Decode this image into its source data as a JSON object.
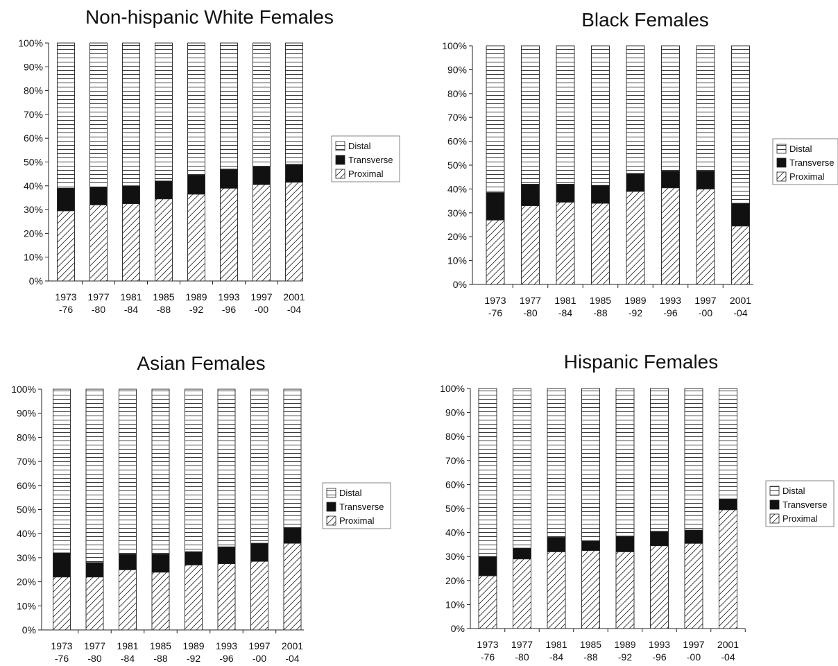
{
  "legend": [
    {
      "name": "Distal",
      "pattern": "horizontal-lines"
    },
    {
      "name": "Transverse",
      "pattern": "solid-black"
    },
    {
      "name": "Proximal",
      "pattern": "diagonal-hatch"
    }
  ],
  "colors": {
    "stroke": "#222222",
    "fill_solid": "#111111",
    "background": "#ffffff"
  },
  "chart_data": [
    {
      "type": "bar",
      "stacked": true,
      "title": "Non-hispanic White Females",
      "categories": [
        [
          "1973",
          "-76"
        ],
        [
          "1977",
          "-80"
        ],
        [
          "1981",
          "-84"
        ],
        [
          "1985",
          "-88"
        ],
        [
          "1989",
          "-92"
        ],
        [
          "1993",
          "-96"
        ],
        [
          "1997",
          "-00"
        ],
        [
          "2001",
          "-04"
        ]
      ],
      "yticks": [
        "0%",
        "10%",
        "20%",
        "30%",
        "40%",
        "50%",
        "60%",
        "70%",
        "80%",
        "90%",
        "100%"
      ],
      "ylim": [
        0,
        100
      ],
      "legend_position": "right",
      "series": [
        {
          "name": "Proximal",
          "values": [
            29.5,
            32,
            32.5,
            34.5,
            36.5,
            39,
            40.5,
            41.5
          ]
        },
        {
          "name": "Transverse",
          "values": [
            9.5,
            7.5,
            7.5,
            7.5,
            8,
            8,
            7.5,
            7.5
          ]
        },
        {
          "name": "Distal",
          "values": [
            61,
            60.5,
            60,
            58,
            55.5,
            53,
            52,
            51
          ]
        }
      ]
    },
    {
      "type": "bar",
      "stacked": true,
      "title": "Black Females",
      "categories": [
        [
          "1973",
          "-76"
        ],
        [
          "1977",
          "-80"
        ],
        [
          "1981",
          "-84"
        ],
        [
          "1985",
          "-88"
        ],
        [
          "1989",
          "-92"
        ],
        [
          "1993",
          "-96"
        ],
        [
          "1997",
          "-00"
        ],
        [
          "2001",
          "-04"
        ]
      ],
      "yticks": [
        "0%",
        "10%",
        "20%",
        "30%",
        "40%",
        "50%",
        "60%",
        "70%",
        "80%",
        "90%",
        "100%"
      ],
      "ylim": [
        0,
        100
      ],
      "legend_position": "right",
      "series": [
        {
          "name": "Proximal",
          "values": [
            27,
            33,
            34.5,
            34,
            39,
            40.5,
            40,
            24.5
          ]
        },
        {
          "name": "Transverse",
          "values": [
            11.5,
            9,
            7.5,
            7.5,
            7.5,
            7,
            7.5,
            9.5
          ]
        },
        {
          "name": "Distal",
          "values": [
            61.5,
            58,
            58,
            58.5,
            53.5,
            52.5,
            52.5,
            66
          ]
        }
      ]
    },
    {
      "type": "bar",
      "stacked": true,
      "title": "Asian Females",
      "categories": [
        [
          "1973",
          "-76"
        ],
        [
          "1977",
          "-80"
        ],
        [
          "1981",
          "-84"
        ],
        [
          "1985",
          "-88"
        ],
        [
          "1989",
          "-92"
        ],
        [
          "1993",
          "-96"
        ],
        [
          "1997",
          "-00"
        ],
        [
          "2001",
          "-04"
        ]
      ],
      "yticks": [
        "0%",
        "10%",
        "20%",
        "30%",
        "40%",
        "50%",
        "60%",
        "70%",
        "80%",
        "90%",
        "100%"
      ],
      "ylim": [
        0,
        100
      ],
      "legend_position": "right",
      "series": [
        {
          "name": "Proximal",
          "values": [
            22,
            22,
            25,
            24,
            27,
            27.5,
            28.5,
            36
          ]
        },
        {
          "name": "Transverse",
          "values": [
            10,
            6,
            6.5,
            7.5,
            5.5,
            7,
            7.5,
            6.5
          ]
        },
        {
          "name": "Distal",
          "values": [
            68,
            72,
            68.5,
            68.5,
            67.5,
            65.5,
            64,
            57.5
          ]
        }
      ]
    },
    {
      "type": "bar",
      "stacked": true,
      "title": "Hispanic Females",
      "categories": [
        [
          "1973",
          "-76"
        ],
        [
          "1977",
          "-80"
        ],
        [
          "1981",
          "-84"
        ],
        [
          "1985",
          "-88"
        ],
        [
          "1989",
          "-92"
        ],
        [
          "1993",
          "-96"
        ],
        [
          "1997",
          "-00"
        ],
        [
          "2001",
          "-04"
        ]
      ],
      "yticks": [
        "0%",
        "10%",
        "20%",
        "30%",
        "40%",
        "50%",
        "60%",
        "70%",
        "80%",
        "90%",
        "100%"
      ],
      "ylim": [
        0,
        100
      ],
      "legend_position": "right",
      "series": [
        {
          "name": "Proximal",
          "values": [
            22,
            29,
            32,
            32.5,
            32,
            34.5,
            35.5,
            49.5
          ]
        },
        {
          "name": "Transverse",
          "values": [
            8,
            4.5,
            6,
            4,
            6.5,
            6,
            5.5,
            4.5
          ]
        },
        {
          "name": "Distal",
          "values": [
            70,
            66.5,
            62,
            63.5,
            61.5,
            59.5,
            59,
            46
          ]
        }
      ]
    }
  ]
}
